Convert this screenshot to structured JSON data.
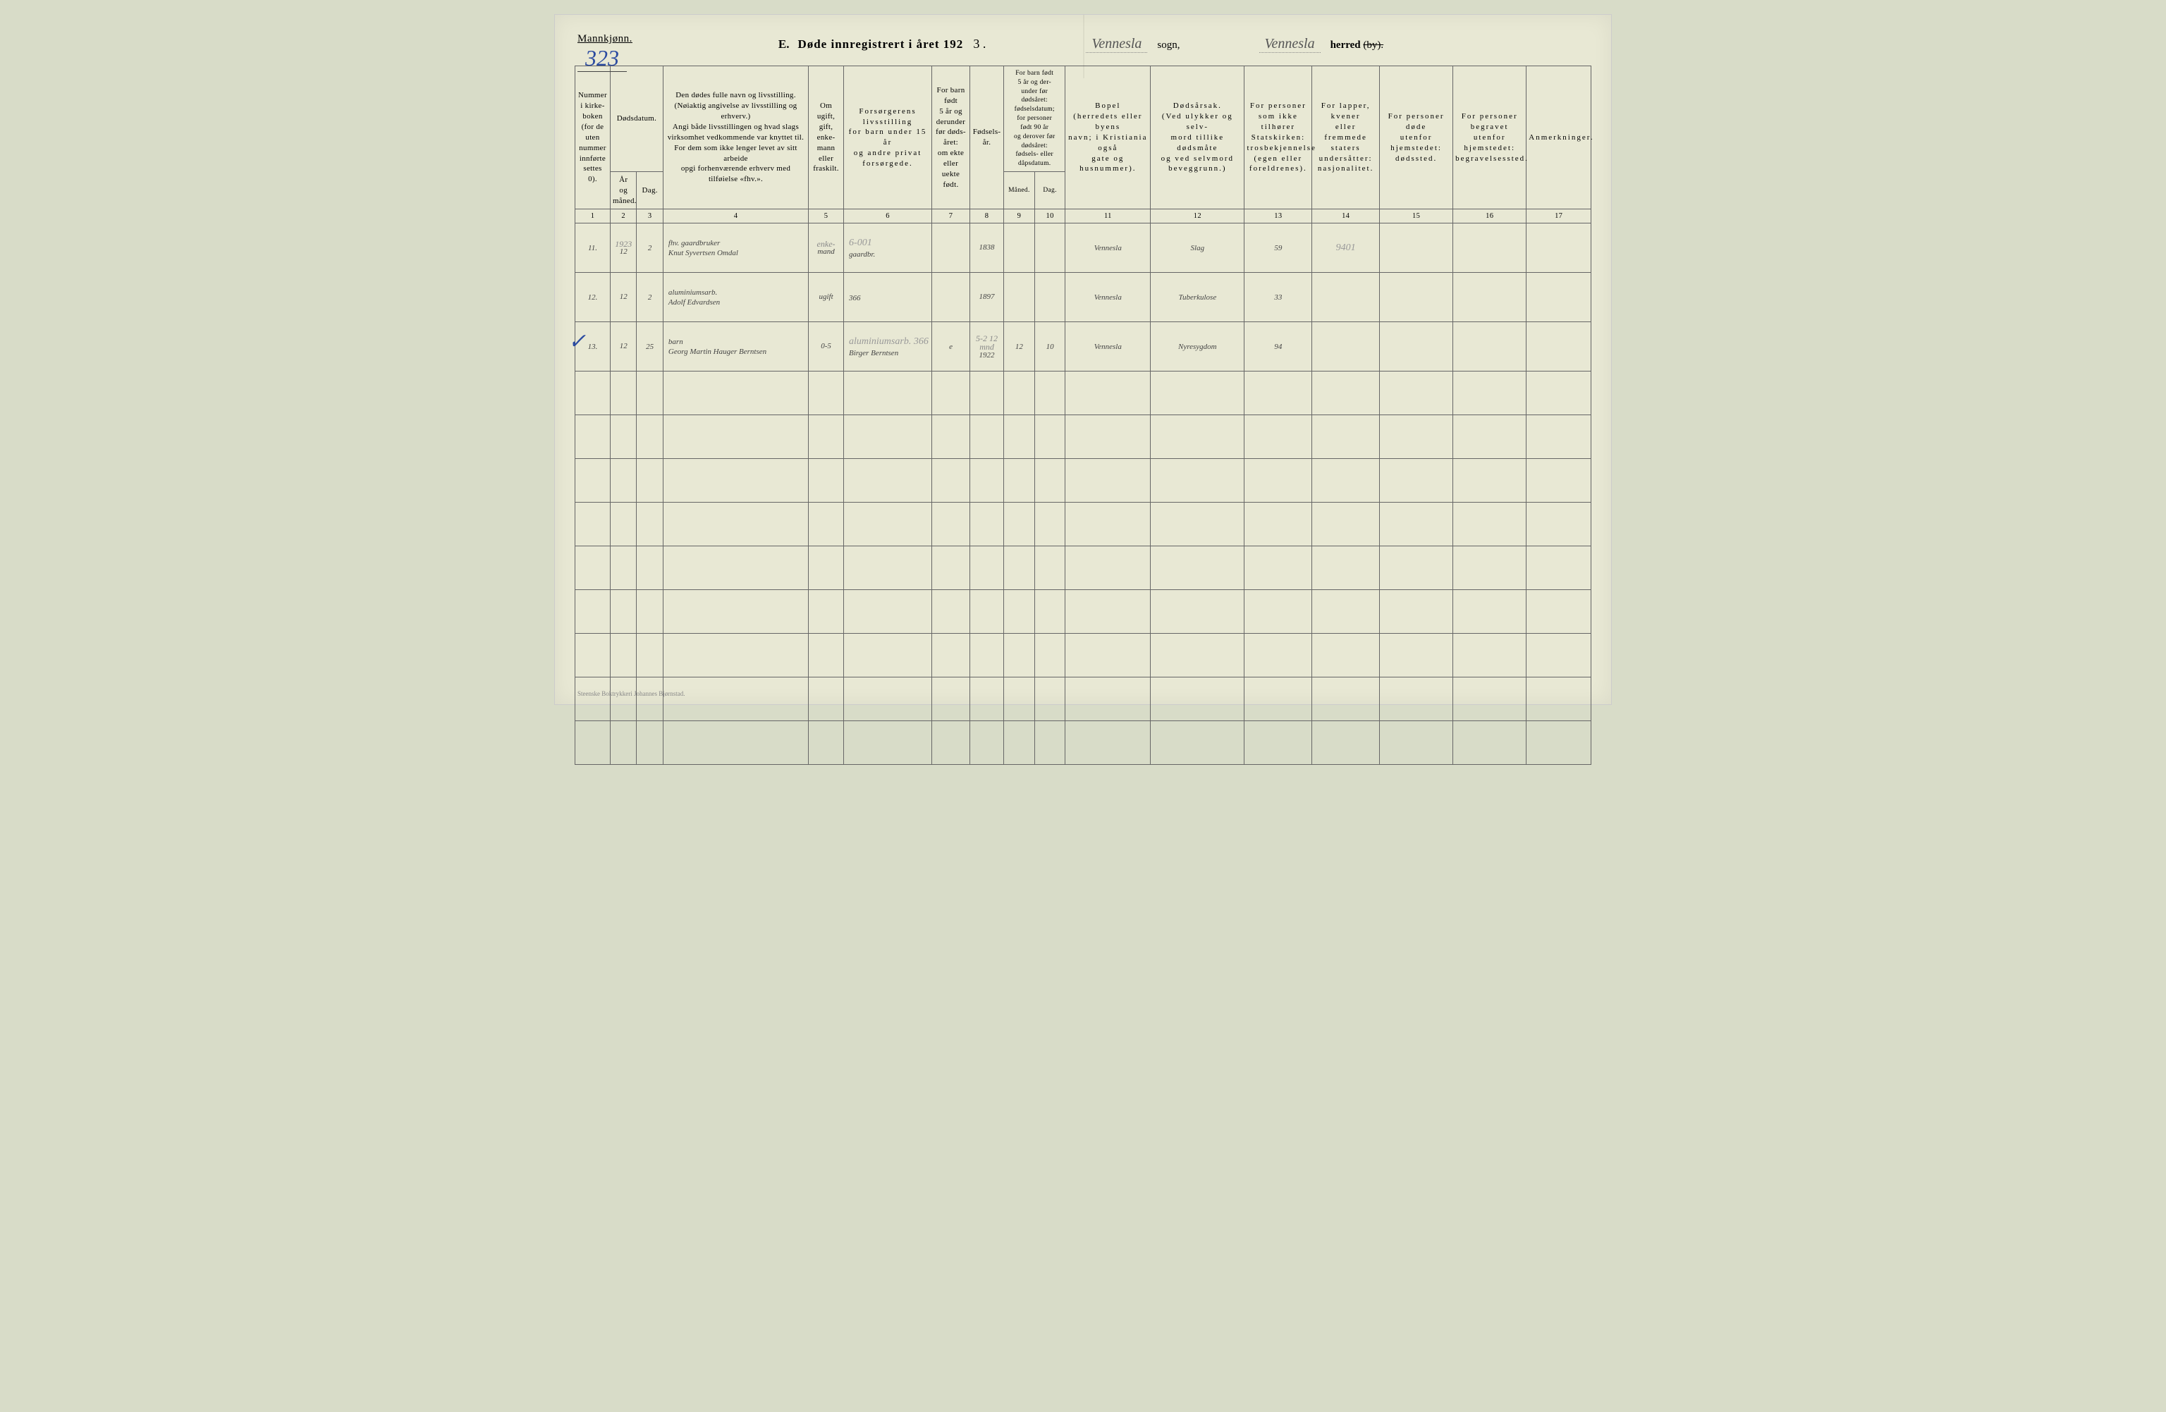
{
  "colors": {
    "page_bg": "#e8e8d4",
    "ink": "#444444",
    "blue_ink": "#2a4aa0",
    "rule": "#666666",
    "faint": "#999999"
  },
  "header": {
    "mannkjonn": "Mannkjønn.",
    "page_number": "323",
    "title_letter": "E.",
    "title_main": "Døde innregistrert i året 192",
    "year_suffix": "3 .",
    "sogn_value": "Vennesla",
    "sogn_label": "sogn,",
    "herred_value": "Vennesla",
    "herred_label": "herred",
    "by_struck": "(by)."
  },
  "columns": {
    "c1": "Nummer\ni kirke-\nboken\n(for de\nuten\nnummer\ninnførte\nsettes\n0).",
    "c23_top": "Dødsdatum.",
    "c2": "År\nog\nmåned.",
    "c3": "Dag.",
    "c4": "Den dødes fulle navn og livsstilling.\n(Nøiaktig angivelse av livsstilling og erhverv.)\nAngi både livsstillingen og hvad slags\nvirksomhet vedkommende var knyttet til.\nFor dem som ikke lenger levet av sitt arbeide\nopgi forhenværende erhverv med tilføielse «fhv.».",
    "c5": "Om\nugift,\ngift,\nenke-\nmann\neller\nfraskilt.",
    "c6": "Forsørgerens\nlivsstilling\nfor barn under 15 år\nog andre privat forsørgede.",
    "c7": "For barn\nfødt\n5 år og\nderunder\nfør døds-\nåret:\nom ekte\neller\nuekte\nfødt.",
    "c8": "Fødsels-\når.",
    "c910_top": "For barn født\n5 år og der-\nunder før\ndødsåret:\nfødselsdatum;\nfor personer\nfødt 90 år\nog derover før\ndødsåret:\nfødsels- eller\ndåpsdatum.",
    "c9": "Måned.",
    "c10": "Dag.",
    "c11": "Bopel\n(herredets eller byens\nnavn; i Kristiania også\ngate og husnummer).",
    "c12": "Dødsårsak.\n(Ved ulykker og selv-\nmord tillike dødsmåte\nog ved selvmord\nbeveggrunn.)",
    "c13": "For personer\nsom ikke tilhører\nStatskirken:\ntrosbekjennelse\n(egen eller foreldrenes).",
    "c14": "For lapper, kvener\neller fremmede\nstaters undersåtter:\nnasjonalitet.",
    "c15": "For personer døde\nutenfor hjemstedet:\ndødssted.",
    "c16": "For personer begravet\nutenfor hjemstedet:\nbegravelsessted.",
    "c17": "Anmerkninger.",
    "nums": [
      "1",
      "2",
      "3",
      "4",
      "5",
      "6",
      "7",
      "8",
      "9",
      "10",
      "11",
      "12",
      "13",
      "14",
      "15",
      "16",
      "17"
    ]
  },
  "rows": [
    {
      "no": "11.",
      "year_top": "1923",
      "year": "12",
      "day": "2",
      "name_top": "fhv. gaardbruker",
      "name": "Knut Syvertsen Omdal",
      "status_top": "enke-",
      "status": "mand",
      "forsorger_top": "6-001",
      "forsorger": "gaardbr.",
      "ekte": "",
      "fodsaar": "1838",
      "mnd": "",
      "dag2": "",
      "bopel": "Vennesla",
      "aarsak": "Slag",
      "c13": "59",
      "c14": "9401",
      "c15": "",
      "c16": "",
      "c17": "",
      "check": false
    },
    {
      "no": "12.",
      "year_top": "",
      "year": "12",
      "day": "2",
      "name_top": "aluminiumsarb.",
      "name": "Adolf Edvardsen",
      "status_top": "",
      "status": "ugift",
      "forsorger_top": "",
      "forsorger": "366",
      "ekte": "",
      "fodsaar": "1897",
      "mnd": "",
      "dag2": "",
      "bopel": "Vennesla",
      "aarsak": "Tuberkulose",
      "c13": "33",
      "c14": "",
      "c15": "",
      "c16": "",
      "c17": "",
      "check": false
    },
    {
      "no": "13.",
      "year_top": "",
      "year": "12",
      "day": "25",
      "name_top": "barn",
      "name": "Georg Martin Hauger Berntsen",
      "status_top": "",
      "status": "0-5",
      "forsorger_top": "aluminiumsarb.  366",
      "forsorger": "Birger Berntsen",
      "ekte": "e",
      "fodsaar_top": "5-2 12 mnd",
      "fodsaar": "1922",
      "mnd": "12",
      "dag2": "10",
      "bopel": "Vennesla",
      "aarsak": "Nyresygdom",
      "c13": "94",
      "c14": "",
      "c15": "",
      "c16": "",
      "c17": "",
      "check": true
    }
  ],
  "empty_row_count": 9,
  "footer": "Steenske Boktrykkeri Johannes Bjørnstad."
}
